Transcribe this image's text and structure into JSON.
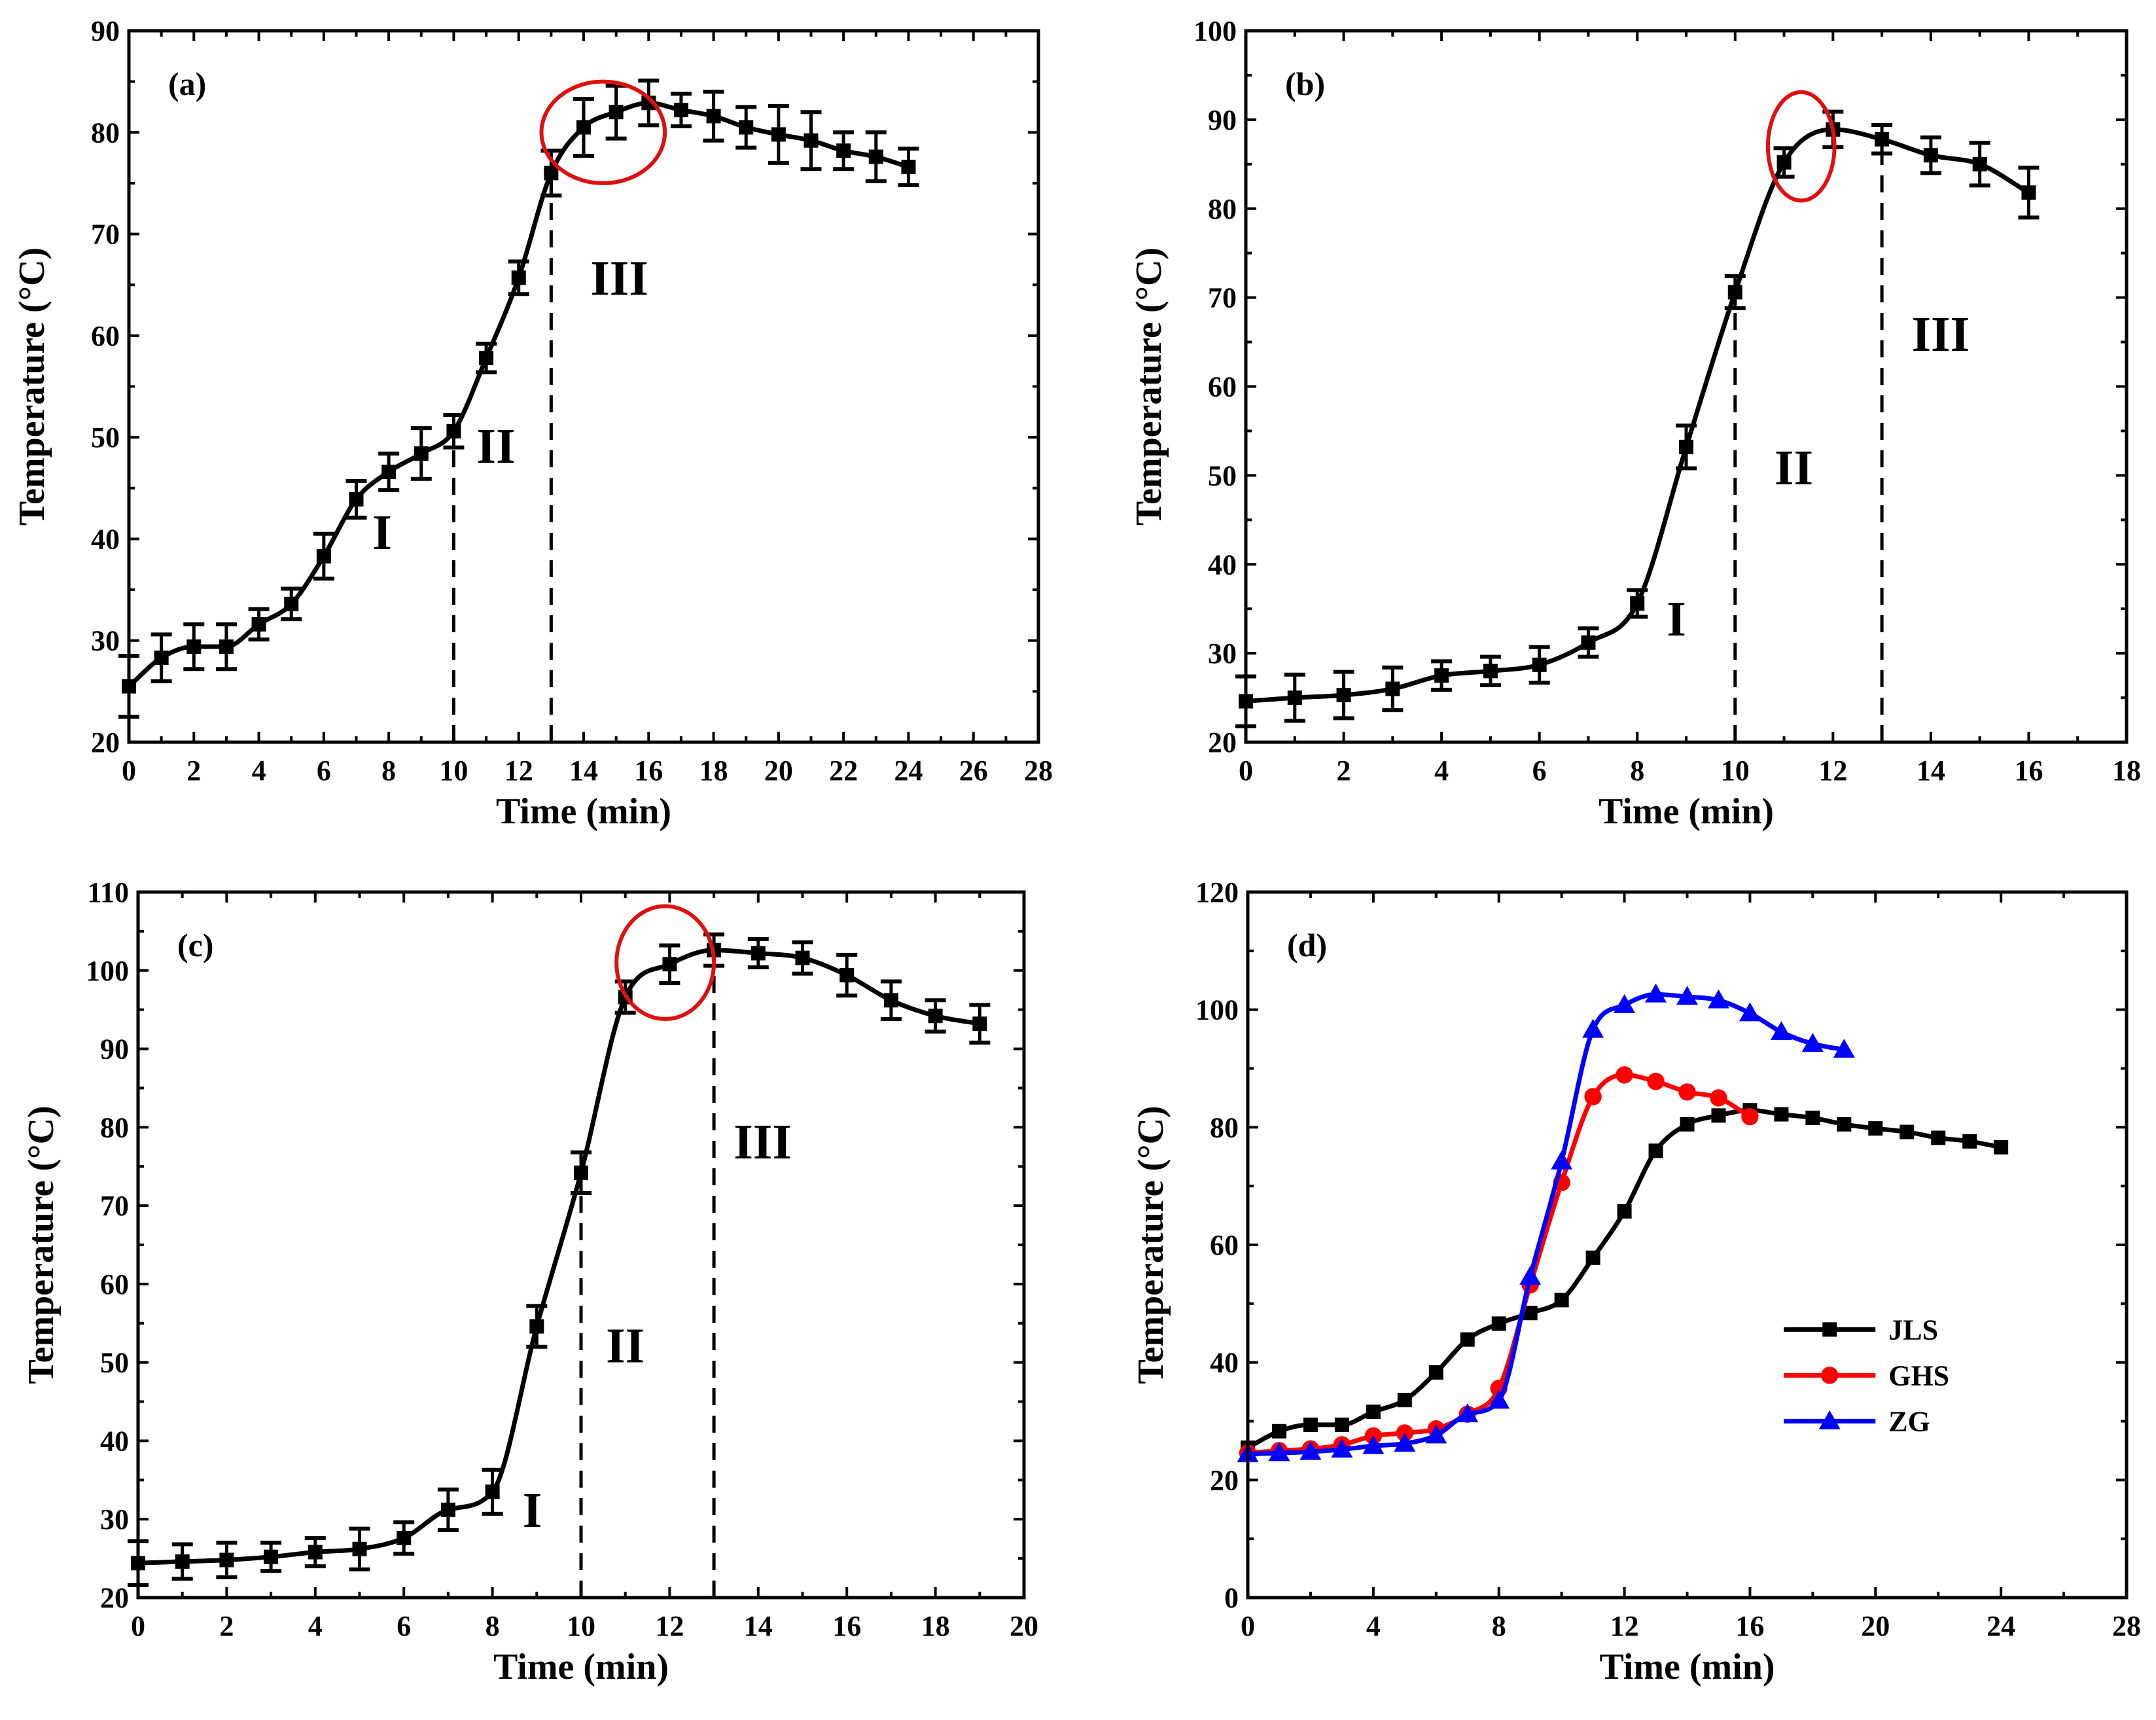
{
  "chart_data": [
    {
      "type": "line",
      "panel_label": "(a)",
      "xlabel": "Time (min)",
      "ylabel": "Temperature (°C)",
      "xlim": [
        0,
        28
      ],
      "ylim": [
        20,
        90
      ],
      "xticks": [
        0,
        2,
        4,
        6,
        8,
        10,
        12,
        14,
        16,
        18,
        20,
        22,
        24,
        26,
        28
      ],
      "yticks": [
        20,
        30,
        40,
        50,
        60,
        70,
        80,
        90
      ],
      "grid": false,
      "color": "#000000",
      "marker": "square",
      "series": [
        {
          "name": "JLS",
          "x": [
            0,
            1,
            2,
            3,
            4,
            5,
            6,
            7,
            8,
            9,
            10,
            11,
            12,
            13,
            14,
            15,
            16,
            17,
            18,
            19,
            20,
            21,
            22,
            23,
            24
          ],
          "values": [
            25.5,
            28.3,
            29.4,
            29.4,
            31.6,
            33.6,
            38.3,
            43.9,
            46.6,
            48.4,
            50.6,
            57.8,
            65.7,
            76.0,
            80.5,
            82.0,
            82.9,
            82.2,
            81.6,
            80.5,
            79.8,
            79.2,
            78.2,
            77.6,
            76.6
          ],
          "errors": [
            3.0,
            2.3,
            2.2,
            2.2,
            1.5,
            1.5,
            2.2,
            1.8,
            1.8,
            2.5,
            1.6,
            1.4,
            1.6,
            2.2,
            2.8,
            2.6,
            2.2,
            1.6,
            2.4,
            2.0,
            2.8,
            2.8,
            1.8,
            2.4,
            1.8
          ]
        }
      ],
      "annotations": [
        {
          "text": "I",
          "x": 7.8,
          "y": 39
        },
        {
          "text": "II",
          "x": 11.3,
          "y": 47.5
        },
        {
          "text": "III",
          "x": 15.1,
          "y": 64
        }
      ],
      "dividers": [
        10,
        13
      ],
      "highlight": {
        "x": 14.6,
        "y": 80.0,
        "rx": 1.9,
        "ry": 5.0,
        "color": "#e01010"
      }
    },
    {
      "type": "line",
      "panel_label": "(b)",
      "xlabel": "Time (min)",
      "ylabel": "Temperature (°C)",
      "xlim": [
        0,
        18
      ],
      "ylim": [
        20,
        100
      ],
      "xticks": [
        0,
        2,
        4,
        6,
        8,
        10,
        12,
        14,
        16,
        18
      ],
      "yticks": [
        20,
        30,
        40,
        50,
        60,
        70,
        80,
        90,
        100
      ],
      "grid": false,
      "color": "#000000",
      "marker": "square",
      "series": [
        {
          "name": "GHS",
          "x": [
            0,
            1,
            2,
            3,
            4,
            5,
            6,
            7,
            8,
            9,
            10,
            11,
            12,
            13,
            14,
            15,
            16
          ],
          "values": [
            24.6,
            25.0,
            25.3,
            26.0,
            27.5,
            28.0,
            28.7,
            31.2,
            35.6,
            53.2,
            70.6,
            85.2,
            88.9,
            87.8,
            86.0,
            85.0,
            81.8
          ],
          "errors": [
            2.8,
            2.6,
            2.6,
            2.4,
            1.6,
            1.6,
            2.0,
            1.6,
            1.5,
            2.4,
            1.8,
            1.6,
            2.0,
            1.6,
            2.0,
            2.4,
            2.8
          ]
        }
      ],
      "annotations": [
        {
          "text": "I",
          "x": 8.8,
          "y": 32
        },
        {
          "text": "II",
          "x": 11.2,
          "y": 49
        },
        {
          "text": "III",
          "x": 14.2,
          "y": 64
        }
      ],
      "dividers": [
        10,
        13
      ],
      "highlight": {
        "x": 11.35,
        "y": 87.0,
        "rx": 0.68,
        "ry": 6.1,
        "color": "#e01010"
      }
    },
    {
      "type": "line",
      "panel_label": "(c)",
      "xlabel": "Time (min)",
      "ylabel": "Temperature (°C)",
      "xlim": [
        0,
        20
      ],
      "ylim": [
        20,
        110
      ],
      "xticks": [
        0,
        2,
        4,
        6,
        8,
        10,
        12,
        14,
        16,
        18,
        20
      ],
      "yticks": [
        20,
        30,
        40,
        50,
        60,
        70,
        80,
        90,
        100,
        110
      ],
      "grid": false,
      "color": "#000000",
      "marker": "square",
      "series": [
        {
          "name": "ZG",
          "x": [
            0,
            1,
            2,
            3,
            4,
            5,
            6,
            7,
            8,
            9,
            10,
            11,
            12,
            13,
            14,
            15,
            16,
            17,
            18,
            19
          ],
          "values": [
            24.4,
            24.6,
            24.8,
            25.2,
            25.8,
            26.2,
            27.6,
            31.2,
            33.5,
            54.6,
            74.2,
            96.6,
            100.8,
            102.6,
            102.2,
            101.6,
            99.4,
            96.2,
            94.2,
            93.2
          ],
          "errors": [
            2.8,
            2.2,
            2.2,
            1.8,
            1.8,
            2.6,
            2.0,
            2.6,
            2.8,
            2.6,
            2.6,
            2.0,
            2.4,
            2.0,
            1.8,
            2.0,
            2.6,
            2.4,
            2.0,
            2.4
          ]
        }
      ],
      "annotations": [
        {
          "text": "I",
          "x": 8.9,
          "y": 29
        },
        {
          "text": "II",
          "x": 11.0,
          "y": 50
        },
        {
          "text": "III",
          "x": 14.1,
          "y": 76
        }
      ],
      "dividers": [
        10,
        13
      ],
      "highlight": {
        "x": 11.9,
        "y": 101.0,
        "rx": 1.1,
        "ry": 7.2,
        "color": "#e01010"
      }
    },
    {
      "type": "line",
      "panel_label": "(d)",
      "xlabel": "Time (min)",
      "ylabel": "Temperature (°C)",
      "xlim": [
        0,
        28
      ],
      "ylim": [
        0,
        120
      ],
      "xticks": [
        0,
        4,
        8,
        12,
        16,
        20,
        24,
        28
      ],
      "yticks": [
        0,
        20,
        40,
        60,
        80,
        100,
        120
      ],
      "grid": false,
      "legend": "lower-right",
      "series": [
        {
          "name": "JLS",
          "color": "#000000",
          "marker": "square",
          "x": [
            0,
            1,
            2,
            3,
            4,
            5,
            6,
            7,
            8,
            9,
            10,
            11,
            12,
            13,
            14,
            15,
            16,
            17,
            18,
            19,
            20,
            21,
            22,
            23,
            24
          ],
          "values": [
            25.5,
            28.3,
            29.4,
            29.4,
            31.6,
            33.6,
            38.3,
            43.9,
            46.6,
            48.4,
            50.6,
            57.8,
            65.7,
            76.0,
            80.5,
            82.0,
            82.9,
            82.2,
            81.6,
            80.5,
            79.8,
            79.2,
            78.2,
            77.6,
            76.6
          ]
        },
        {
          "name": "GHS",
          "color": "#ff0000",
          "marker": "circle",
          "x": [
            0,
            1,
            2,
            3,
            4,
            5,
            6,
            7,
            8,
            9,
            10,
            11,
            12,
            13,
            14,
            15,
            16
          ],
          "values": [
            24.6,
            25.0,
            25.3,
            26.0,
            27.5,
            28.0,
            28.7,
            31.2,
            35.6,
            53.2,
            70.6,
            85.2,
            88.9,
            87.8,
            86.0,
            85.0,
            81.8
          ]
        },
        {
          "name": "ZG",
          "color": "#0000ff",
          "marker": "triangle",
          "x": [
            0,
            1,
            2,
            3,
            4,
            5,
            6,
            7,
            8,
            9,
            10,
            11,
            12,
            13,
            14,
            15,
            16,
            17,
            18,
            19
          ],
          "values": [
            24.4,
            24.6,
            24.8,
            25.2,
            25.8,
            26.2,
            27.6,
            31.2,
            33.5,
            54.6,
            74.2,
            96.6,
            100.8,
            102.6,
            102.2,
            101.6,
            99.4,
            96.2,
            94.2,
            93.2
          ]
        }
      ]
    }
  ]
}
